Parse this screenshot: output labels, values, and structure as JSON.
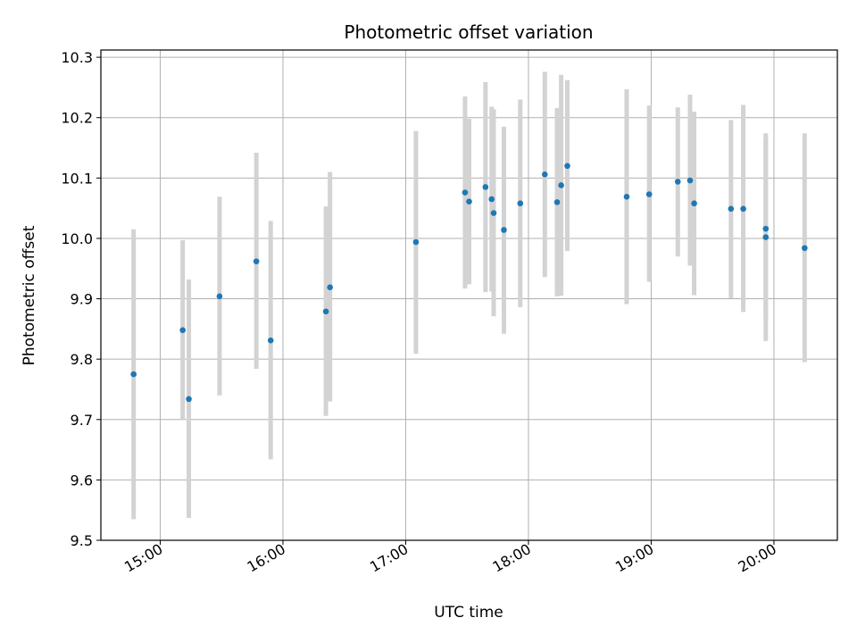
{
  "chart_data": {
    "type": "scatter",
    "title": "Photometric offset variation",
    "xlabel": "UTC time",
    "ylabel": "Photometric offset",
    "xlim": [
      "14:31",
      "20:31"
    ],
    "ylim": [
      9.5,
      10.312
    ],
    "x_ticks": [
      "15:00",
      "16:00",
      "17:00",
      "18:00",
      "19:00",
      "20:00"
    ],
    "y_ticks": [
      "9.5",
      "9.6",
      "9.7",
      "9.8",
      "9.9",
      "10.0",
      "10.1",
      "10.2",
      "10.3"
    ],
    "grid": true,
    "colors": {
      "points": "#1f77b4",
      "errorbars": "#d3d3d3",
      "grid": "#b0b0b0"
    },
    "points": [
      {
        "x": "14:47",
        "y": 9.775,
        "low": 9.535,
        "high": 10.015
      },
      {
        "x": "15:11",
        "y": 9.848,
        "low": 9.7,
        "high": 9.997
      },
      {
        "x": "15:14",
        "y": 9.734,
        "low": 9.537,
        "high": 9.932
      },
      {
        "x": "15:29",
        "y": 9.904,
        "low": 9.74,
        "high": 10.069
      },
      {
        "x": "15:47",
        "y": 9.962,
        "low": 9.784,
        "high": 10.142
      },
      {
        "x": "15:54",
        "y": 9.831,
        "low": 9.634,
        "high": 10.029
      },
      {
        "x": "16:21",
        "y": 9.879,
        "low": 9.706,
        "high": 10.053
      },
      {
        "x": "16:23",
        "y": 9.919,
        "low": 9.73,
        "high": 10.11
      },
      {
        "x": "17:05",
        "y": 9.994,
        "low": 9.809,
        "high": 10.178
      },
      {
        "x": "17:29",
        "y": 10.076,
        "low": 9.917,
        "high": 10.235
      },
      {
        "x": "17:31",
        "y": 10.061,
        "low": 9.924,
        "high": 10.198
      },
      {
        "x": "17:39",
        "y": 10.085,
        "low": 9.911,
        "high": 10.259
      },
      {
        "x": "17:42",
        "y": 10.065,
        "low": 9.912,
        "high": 10.218
      },
      {
        "x": "17:43",
        "y": 10.042,
        "low": 9.871,
        "high": 10.214
      },
      {
        "x": "17:48",
        "y": 10.014,
        "low": 9.842,
        "high": 10.185
      },
      {
        "x": "17:56",
        "y": 10.058,
        "low": 9.886,
        "high": 10.23
      },
      {
        "x": "18:08",
        "y": 10.106,
        "low": 9.936,
        "high": 10.276
      },
      {
        "x": "18:14",
        "y": 10.06,
        "low": 9.904,
        "high": 10.216
      },
      {
        "x": "18:16",
        "y": 10.088,
        "low": 9.905,
        "high": 10.271
      },
      {
        "x": "18:19",
        "y": 10.12,
        "low": 9.979,
        "high": 10.262
      },
      {
        "x": "18:48",
        "y": 10.069,
        "low": 9.891,
        "high": 10.247
      },
      {
        "x": "18:59",
        "y": 10.073,
        "low": 9.928,
        "high": 10.22
      },
      {
        "x": "19:13",
        "y": 10.094,
        "low": 9.97,
        "high": 10.217
      },
      {
        "x": "19:19",
        "y": 10.096,
        "low": 9.955,
        "high": 10.238
      },
      {
        "x": "19:21",
        "y": 10.058,
        "low": 9.906,
        "high": 10.21
      },
      {
        "x": "19:39",
        "y": 10.049,
        "low": 9.901,
        "high": 10.196
      },
      {
        "x": "19:45",
        "y": 10.049,
        "low": 9.878,
        "high": 10.221
      },
      {
        "x": "19:56",
        "y": 10.016,
        "low": 9.869,
        "high": 10.164
      },
      {
        "x": "19:56",
        "y": 10.002,
        "low": 9.83,
        "high": 10.174
      },
      {
        "x": "20:15",
        "y": 9.984,
        "low": 9.795,
        "high": 10.174
      }
    ]
  }
}
